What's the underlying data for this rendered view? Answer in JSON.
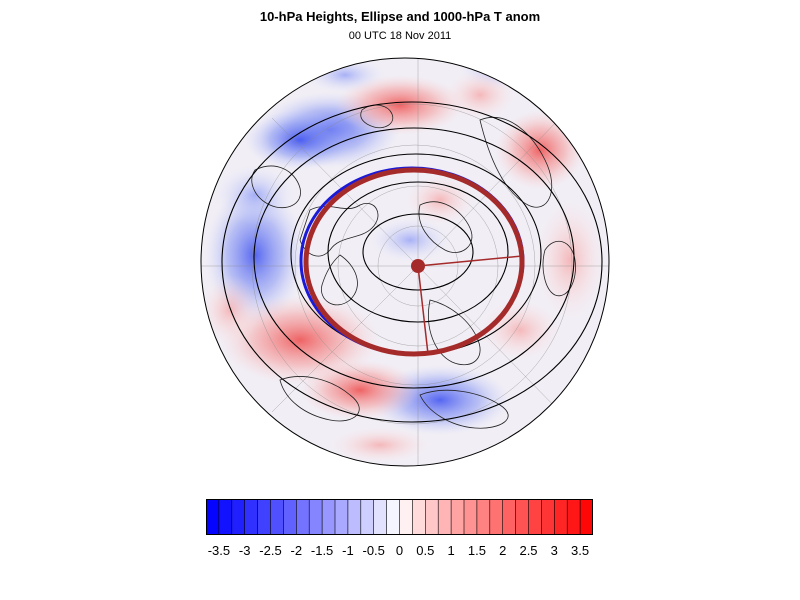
{
  "header": {
    "title": "10-hPa Heights, Ellipse and 1000-hPa T anom",
    "subtitle": "00 UTC 18 Nov 2011"
  },
  "map": {
    "projection": "polar stereographic (north pole)",
    "field": "1000-hPa T anom",
    "contours": "10-hPa Heights",
    "overlay": "Ellipse",
    "ellipse_color": "#a52a2a",
    "contour_color": "#000000"
  },
  "colorbar": {
    "tick_labels": [
      "-3.5",
      "-3",
      "-2.5",
      "-2",
      "-1.5",
      "-1",
      "-0.5",
      "0",
      "0.5",
      "1",
      "1.5",
      "2",
      "2.5",
      "3",
      "3.5"
    ],
    "min_color": "#0000ff",
    "mid_color": "#ffffff",
    "max_color": "#ff0000",
    "n_bins": 30
  }
}
